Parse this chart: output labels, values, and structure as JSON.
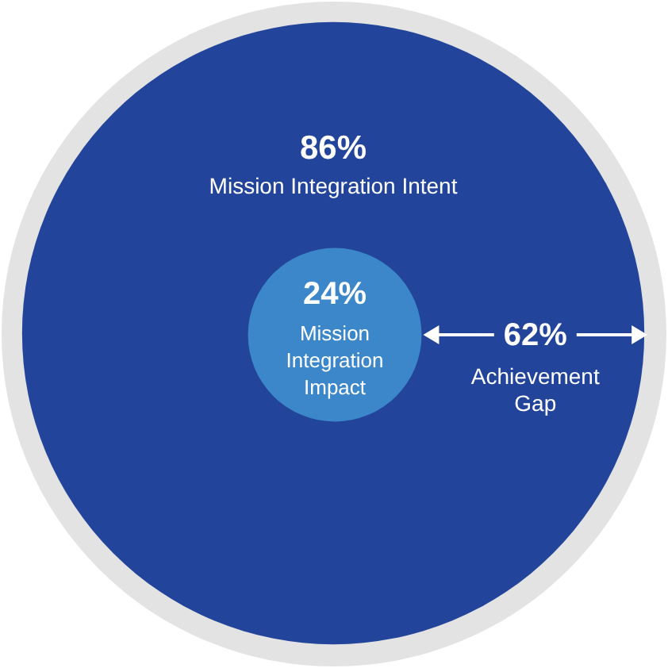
{
  "chart_data": {
    "type": "other",
    "categories": [
      "Mission Integration Intent",
      "Mission Integration Impact",
      "Achievement Gap"
    ],
    "values": [
      86,
      24,
      62
    ],
    "value_labels": [
      "86%",
      "24%",
      "62%"
    ],
    "colors": [
      "#22449a",
      "#3b87ca",
      "#ffffff"
    ]
  }
}
